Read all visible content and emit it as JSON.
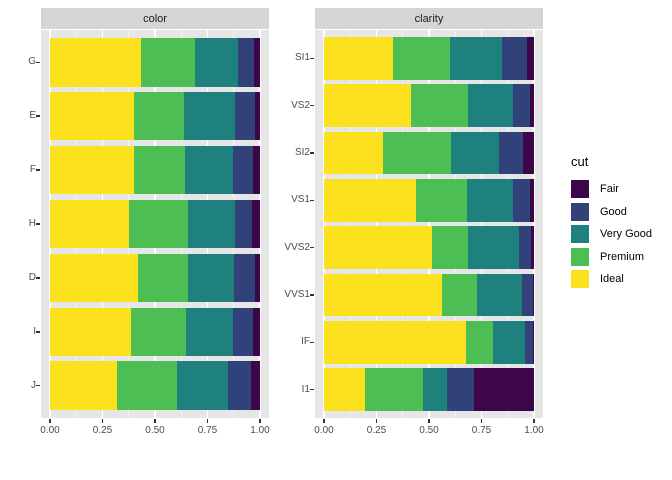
{
  "window": {
    "background": "#ffffff"
  },
  "theme": {
    "strip_fill": "#d5d5d5",
    "strip_text_color": "#1a1a1a",
    "panel_fill": "#e5e6e5",
    "grid_major_color": "#ffffff",
    "grid_minor_color": "#f4f4f4",
    "axis_text_color": "#4d4d4d",
    "tick_color": "#333333",
    "legend_text_color": "#000000"
  },
  "legend": {
    "title": "cut",
    "entries": [
      {
        "label": "Fair",
        "color": "#3d0649"
      },
      {
        "label": "Good",
        "color": "#31427a"
      },
      {
        "label": "Very Good",
        "color": "#1f817d"
      },
      {
        "label": "Premium",
        "color": "#4dbe53"
      },
      {
        "label": "Ideal",
        "color": "#fce21e"
      }
    ]
  },
  "chart_data": [
    {
      "type": "bar",
      "stacked": true,
      "normalized_to_1": true,
      "orientation": "horizontal",
      "title": "color",
      "categories": [
        "G",
        "E",
        "F",
        "H",
        "D",
        "I",
        "J"
      ],
      "series": [
        {
          "name": "Ideal",
          "color": "#fce21e",
          "values": [
            0.4325,
            0.3984,
            0.401,
            0.3751,
            0.4183,
            0.386,
            0.3191
          ]
        },
        {
          "name": "Premium",
          "color": "#4dbe53",
          "values": [
            0.2589,
            0.2385,
            0.2443,
            0.2842,
            0.2366,
            0.2634,
            0.2877
          ]
        },
        {
          "name": "Very Good",
          "color": "#1f817d",
          "values": [
            0.2036,
            0.245,
            0.2268,
            0.2197,
            0.2233,
            0.2221,
            0.2415
          ]
        },
        {
          "name": "Good",
          "color": "#31427a",
          "values": [
            0.0771,
            0.0952,
            0.0953,
            0.0845,
            0.0977,
            0.0963,
            0.1093
          ]
        },
        {
          "name": "Fair",
          "color": "#3d0649",
          "values": [
            0.0278,
            0.0229,
            0.0327,
            0.0365,
            0.0241,
            0.0323,
            0.0424
          ]
        }
      ],
      "xlim": [
        0,
        1
      ],
      "x_ticks": [
        {
          "v": 0,
          "label": "0.00"
        },
        {
          "v": 0.25,
          "label": "0.25"
        },
        {
          "v": 0.5,
          "label": "0.50"
        },
        {
          "v": 0.75,
          "label": "0.75"
        },
        {
          "v": 1,
          "label": "1.00"
        }
      ],
      "x_minor_ticks": [
        0.125,
        0.375,
        0.625,
        0.875
      ]
    },
    {
      "type": "bar",
      "stacked": true,
      "normalized_to_1": true,
      "orientation": "horizontal",
      "title": "clarity",
      "categories": [
        "SI1",
        "VS2",
        "SI2",
        "VS1",
        "VVS2",
        "VVS1",
        "IF",
        "I1"
      ],
      "series": [
        {
          "name": "Ideal",
          "color": "#fce21e",
          "values": [
            0.3277,
            0.4137,
            0.2826,
            0.4392,
            0.5144,
            0.5601,
            0.6771,
            0.197
          ]
        },
        {
          "name": "Premium",
          "color": "#4dbe53",
          "values": [
            0.2736,
            0.2739,
            0.3208,
            0.2434,
            0.1717,
            0.1685,
            0.1285,
            0.2767
          ]
        },
        {
          "name": "Very Good",
          "color": "#1f817d",
          "values": [
            0.248,
            0.2114,
            0.2284,
            0.2172,
            0.2438,
            0.2159,
            0.1497,
            0.1134
          ]
        },
        {
          "name": "Good",
          "color": "#31427a",
          "values": [
            0.1194,
            0.0798,
            0.1176,
            0.0793,
            0.0565,
            0.0509,
            0.0397,
            0.1296
          ]
        },
        {
          "name": "Fair",
          "color": "#3d0649",
          "values": [
            0.0312,
            0.0213,
            0.0507,
            0.0208,
            0.0136,
            0.0047,
            0.005,
            0.2834
          ]
        }
      ],
      "xlim": [
        0,
        1
      ],
      "x_ticks": [
        {
          "v": 0,
          "label": "0.00"
        },
        {
          "v": 0.25,
          "label": "0.25"
        },
        {
          "v": 0.5,
          "label": "0.50"
        },
        {
          "v": 0.75,
          "label": "0.75"
        },
        {
          "v": 1,
          "label": "1.00"
        }
      ],
      "x_minor_ticks": [
        0.125,
        0.375,
        0.625,
        0.875
      ]
    }
  ]
}
